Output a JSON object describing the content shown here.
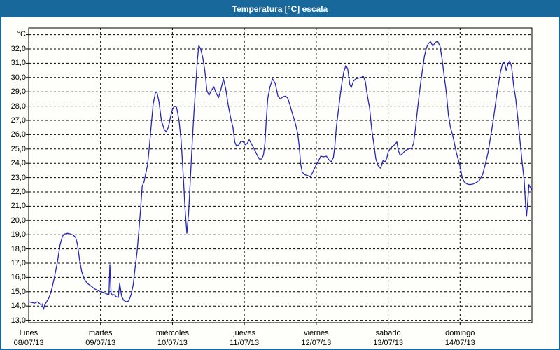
{
  "window": {
    "title": "Temperatura [°C] escala"
  },
  "colors": {
    "frame": "#19689c",
    "titlebar_bg": "#19689c",
    "title_text": "#ffffff",
    "line": "#2525bd",
    "grid": "#000000",
    "background": "#fefefa"
  },
  "chart_data": {
    "type": "line",
    "title": "Temperatura [°C] escala",
    "y_unit": "°C",
    "ylabel": "",
    "xlabel": "",
    "ylim": [
      13,
      33
    ],
    "grid": true,
    "y_ticks": [
      "32,0",
      "31,0",
      "30,0",
      "29,0",
      "28,0",
      "27,0",
      "26,0",
      "25,0",
      "24,0",
      "23,0",
      "22,0",
      "21,0",
      "20,0",
      "19,0",
      "18,0",
      "17,0",
      "16,0",
      "15,0",
      "14,0",
      "13,0"
    ],
    "x_days": [
      {
        "name": "lunes",
        "date": "08/07/13"
      },
      {
        "name": "martes",
        "date": "09/07/13"
      },
      {
        "name": "miércoles",
        "date": "10/07/13"
      },
      {
        "name": "jueves",
        "date": "11/07/13"
      },
      {
        "name": "viernes",
        "date": "12/07/13"
      },
      {
        "name": "sábado",
        "date": "13/07/13"
      },
      {
        "name": "domingo",
        "date": "14/07/13"
      }
    ],
    "x_range_hours": [
      0,
      168
    ],
    "series": [
      {
        "name": "Temperatura",
        "points": [
          [
            0,
            14.3
          ],
          [
            1,
            14.25
          ],
          [
            2,
            14.2
          ],
          [
            3,
            14.3
          ],
          [
            4,
            14.1
          ],
          [
            4.6,
            14.15
          ],
          [
            4.9,
            13.75
          ],
          [
            5.4,
            14.1
          ],
          [
            6,
            14.3
          ],
          [
            6.8,
            14.6
          ],
          [
            7.5,
            15.0
          ],
          [
            8.6,
            16.0
          ],
          [
            9.6,
            17.1
          ],
          [
            10.5,
            18.3
          ],
          [
            11.3,
            18.9
          ],
          [
            12,
            19.05
          ],
          [
            13,
            19.1
          ],
          [
            14,
            19.05
          ],
          [
            15,
            18.95
          ],
          [
            15.7,
            18.8
          ],
          [
            16.3,
            18.3
          ],
          [
            17,
            17.2
          ],
          [
            17.7,
            16.4
          ],
          [
            18.5,
            15.9
          ],
          [
            19.5,
            15.6
          ],
          [
            20.8,
            15.4
          ],
          [
            22,
            15.2
          ],
          [
            23,
            15.1
          ],
          [
            24,
            15.0
          ],
          [
            25,
            14.95
          ],
          [
            26,
            14.85
          ],
          [
            26.8,
            14.8
          ],
          [
            27.1,
            16.9
          ],
          [
            27.5,
            14.9
          ],
          [
            28,
            14.75
          ],
          [
            28.5,
            14.8
          ],
          [
            29.2,
            14.65
          ],
          [
            29.9,
            14.6
          ],
          [
            30.4,
            15.6
          ],
          [
            31,
            14.7
          ],
          [
            31.7,
            14.4
          ],
          [
            32.5,
            14.3
          ],
          [
            33.4,
            14.35
          ],
          [
            34.2,
            14.8
          ],
          [
            34.9,
            15.5
          ],
          [
            35.5,
            16.6
          ],
          [
            36.2,
            17.8
          ],
          [
            36.8,
            19.3
          ],
          [
            37.3,
            20.6
          ],
          [
            37.9,
            22.4
          ],
          [
            38.5,
            22.7
          ],
          [
            39,
            23.2
          ],
          [
            39.7,
            23.9
          ],
          [
            40.3,
            25.2
          ],
          [
            41,
            26.9
          ],
          [
            41.6,
            28.2
          ],
          [
            42.3,
            28.9
          ],
          [
            42.8,
            29.0
          ],
          [
            43.5,
            28.3
          ],
          [
            44.3,
            27.0
          ],
          [
            45.2,
            26.4
          ],
          [
            45.9,
            26.2
          ],
          [
            46.6,
            26.5
          ],
          [
            47.4,
            27.3
          ],
          [
            48.1,
            27.85
          ],
          [
            48.8,
            28.0
          ],
          [
            49.4,
            27.9
          ],
          [
            50.2,
            27.0
          ],
          [
            50.9,
            25.6
          ],
          [
            51.6,
            23.2
          ],
          [
            52.2,
            20.8
          ],
          [
            52.8,
            19.1
          ],
          [
            53.4,
            20.5
          ],
          [
            54,
            23.0
          ],
          [
            54.6,
            25.5
          ],
          [
            55.2,
            27.6
          ],
          [
            55.8,
            29.5
          ],
          [
            56.3,
            31.2
          ],
          [
            56.8,
            32.25
          ],
          [
            57.4,
            32.0
          ],
          [
            58.1,
            31.4
          ],
          [
            58.8,
            30.5
          ],
          [
            59.5,
            29.1
          ],
          [
            60.2,
            28.75
          ],
          [
            61,
            29.1
          ],
          [
            61.8,
            29.35
          ],
          [
            62.6,
            28.9
          ],
          [
            63.4,
            28.6
          ],
          [
            64.2,
            29.2
          ],
          [
            65,
            29.9
          ],
          [
            65.8,
            29.2
          ],
          [
            66.6,
            28.1
          ],
          [
            67.4,
            27.2
          ],
          [
            68.2,
            26.5
          ],
          [
            68.8,
            25.5
          ],
          [
            69.4,
            25.2
          ],
          [
            70.2,
            25.3
          ],
          [
            70.9,
            25.55
          ],
          [
            71.6,
            25.5
          ],
          [
            72.3,
            25.3
          ],
          [
            73,
            25.4
          ],
          [
            73.6,
            25.65
          ],
          [
            74.4,
            25.35
          ],
          [
            75.3,
            25.0
          ],
          [
            76.2,
            24.6
          ],
          [
            77,
            24.3
          ],
          [
            77.8,
            24.3
          ],
          [
            78.4,
            24.6
          ],
          [
            78.9,
            25.5
          ],
          [
            79.3,
            27.0
          ],
          [
            79.8,
            28.5
          ],
          [
            80.5,
            29.3
          ],
          [
            81.4,
            29.9
          ],
          [
            82.3,
            29.6
          ],
          [
            83.2,
            28.7
          ],
          [
            84,
            28.5
          ],
          [
            84.9,
            28.65
          ],
          [
            85.8,
            28.7
          ],
          [
            86.5,
            28.55
          ],
          [
            87.2,
            28.1
          ],
          [
            88,
            27.5
          ],
          [
            88.9,
            26.9
          ],
          [
            89.8,
            26.1
          ],
          [
            90.3,
            25.2
          ],
          [
            90.8,
            23.95
          ],
          [
            91.3,
            23.4
          ],
          [
            92.1,
            23.2
          ],
          [
            93,
            23.15
          ],
          [
            94,
            23.05
          ],
          [
            94.9,
            23.4
          ],
          [
            95.9,
            23.85
          ],
          [
            96.6,
            24.1
          ],
          [
            97.5,
            24.5
          ],
          [
            98.4,
            24.45
          ],
          [
            99.4,
            24.5
          ],
          [
            100.2,
            24.25
          ],
          [
            101,
            24.1
          ],
          [
            101.7,
            24.4
          ],
          [
            102.2,
            25.2
          ],
          [
            102.7,
            26.5
          ],
          [
            103.2,
            27.4
          ],
          [
            103.9,
            28.6
          ],
          [
            104.6,
            29.7
          ],
          [
            105.2,
            30.4
          ],
          [
            105.9,
            30.85
          ],
          [
            106.5,
            30.6
          ],
          [
            107.2,
            29.5
          ],
          [
            107.7,
            29.3
          ],
          [
            108.4,
            29.75
          ],
          [
            109.2,
            29.9
          ],
          [
            110.1,
            29.95
          ],
          [
            111,
            30.0
          ],
          [
            111.7,
            30.1
          ],
          [
            112.4,
            29.7
          ],
          [
            113.1,
            28.7
          ],
          [
            113.8,
            27.9
          ],
          [
            114.5,
            26.4
          ],
          [
            115.2,
            25.4
          ],
          [
            115.9,
            24.3
          ],
          [
            116.6,
            23.85
          ],
          [
            117.5,
            23.65
          ],
          [
            118.3,
            24.2
          ],
          [
            119,
            24.1
          ],
          [
            119.6,
            24.4
          ],
          [
            120,
            24.8
          ],
          [
            120.7,
            25.05
          ],
          [
            121.6,
            25.2
          ],
          [
            122.4,
            25.35
          ],
          [
            122.9,
            25.5
          ],
          [
            123.4,
            24.9
          ],
          [
            124,
            24.55
          ],
          [
            124.9,
            24.7
          ],
          [
            125.8,
            24.9
          ],
          [
            126.8,
            25.0
          ],
          [
            127.8,
            25.05
          ],
          [
            128.5,
            25.4
          ],
          [
            129.1,
            26.4
          ],
          [
            129.7,
            27.6
          ],
          [
            130.3,
            28.7
          ],
          [
            130.9,
            29.7
          ],
          [
            131.5,
            30.6
          ],
          [
            132.1,
            31.5
          ],
          [
            132.8,
            32.1
          ],
          [
            133.5,
            32.4
          ],
          [
            134.2,
            32.5
          ],
          [
            134.9,
            32.2
          ],
          [
            135.7,
            32.45
          ],
          [
            136.5,
            32.55
          ],
          [
            137.3,
            32.2
          ],
          [
            138,
            31.3
          ],
          [
            138.7,
            30.1
          ],
          [
            139.4,
            29.0
          ],
          [
            140.1,
            27.4
          ],
          [
            140.8,
            26.5
          ],
          [
            141.5,
            26.0
          ],
          [
            142.1,
            25.4
          ],
          [
            142.8,
            24.7
          ],
          [
            143.5,
            24.2
          ],
          [
            144.1,
            23.7
          ],
          [
            144.7,
            23.0
          ],
          [
            145.4,
            22.7
          ],
          [
            146.3,
            22.55
          ],
          [
            147.3,
            22.5
          ],
          [
            148.4,
            22.55
          ],
          [
            149.4,
            22.65
          ],
          [
            150.4,
            22.8
          ],
          [
            151.5,
            23.2
          ],
          [
            152.4,
            23.9
          ],
          [
            153.3,
            24.7
          ],
          [
            154,
            25.6
          ],
          [
            154.7,
            26.5
          ],
          [
            155.4,
            27.5
          ],
          [
            156.1,
            28.6
          ],
          [
            156.8,
            29.5
          ],
          [
            157.5,
            30.4
          ],
          [
            158.2,
            31.0
          ],
          [
            158.8,
            31.1
          ],
          [
            159.4,
            30.5
          ],
          [
            160.1,
            31.0
          ],
          [
            160.6,
            31.15
          ],
          [
            161.2,
            30.75
          ],
          [
            161.9,
            29.4
          ],
          [
            162.6,
            28.5
          ],
          [
            163.3,
            27.1
          ],
          [
            164,
            25.6
          ],
          [
            164.7,
            24.1
          ],
          [
            165.4,
            22.8
          ],
          [
            165.9,
            21.0
          ],
          [
            166.2,
            20.3
          ],
          [
            166.6,
            21.3
          ],
          [
            167,
            22.5
          ],
          [
            167.5,
            22.3
          ],
          [
            168,
            22.1
          ]
        ]
      }
    ]
  }
}
